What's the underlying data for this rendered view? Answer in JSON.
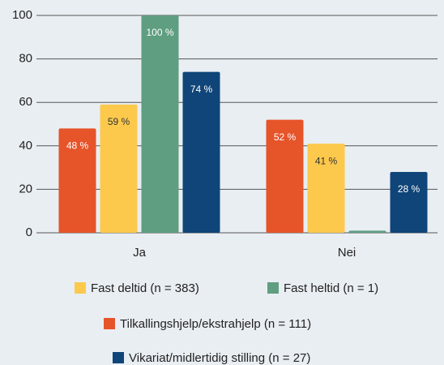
{
  "chart_data": {
    "type": "bar",
    "categories": [
      "Ja",
      "Nei"
    ],
    "series": [
      {
        "name": "Tilkallingshjelp/ekstrahjelp (n = 111)",
        "color": "#e6542a",
        "values": [
          48,
          52
        ],
        "value_labels": [
          "48 %",
          "52 %"
        ]
      },
      {
        "name": "Fast deltid (n = 383)",
        "color": "#fcc94c",
        "values": [
          59,
          41
        ],
        "value_labels": [
          "59 %",
          "41 %"
        ]
      },
      {
        "name": "Fast heltid (n = 1)",
        "color": "#5f9e80",
        "values": [
          100,
          1
        ],
        "value_labels": [
          "100 %",
          null
        ]
      },
      {
        "name": "Vikariat/midlertidig stilling (n = 27)",
        "color": "#0f4578",
        "values": [
          74,
          28
        ],
        "value_labels": [
          "74 %",
          "28 %"
        ]
      }
    ],
    "ylim": [
      0,
      100
    ],
    "yticks": [
      0,
      20,
      40,
      60,
      80,
      100
    ],
    "grid": true
  }
}
